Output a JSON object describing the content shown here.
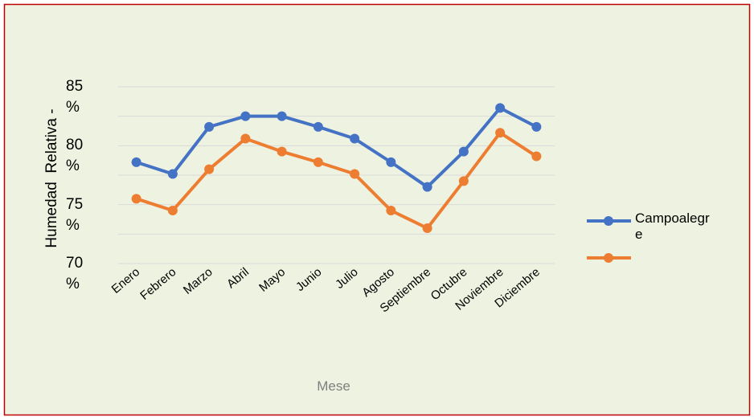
{
  "chart_data": {
    "type": "line",
    "y_label": "Humedad  Relativa -",
    "x_label": "Mese",
    "categories": [
      "Enero",
      "Febrero",
      "Marzo",
      "Abril",
      "Mayo",
      "Junio",
      "Julio",
      "Agosto",
      "Septiembre",
      "Octubre",
      "Noviembre",
      "Diciembre"
    ],
    "series": [
      {
        "name": "Campoalegre",
        "color": "#4472c4",
        "values": [
          78.6,
          77.6,
          81.6,
          82.5,
          82.5,
          81.6,
          80.6,
          78.6,
          76.5,
          79.5,
          83.2,
          81.6
        ]
      },
      {
        "color": "#ed7d31",
        "values": [
          75.5,
          74.5,
          78.0,
          80.6,
          79.5,
          78.6,
          77.6,
          74.5,
          73.0,
          77.0,
          81.1,
          79.1
        ]
      }
    ],
    "ylim": [
      70,
      85
    ],
    "yticks": [
      {
        "value": 85,
        "label": "85 %"
      },
      {
        "value": 80,
        "label": "80 %"
      },
      {
        "value": 75,
        "label": "75 %"
      },
      {
        "value": 70,
        "label": "70 %"
      }
    ],
    "ygrid": [
      70,
      72.5,
      75,
      77.5,
      80,
      82.5,
      85
    ],
    "grid": true,
    "legend": "right"
  }
}
